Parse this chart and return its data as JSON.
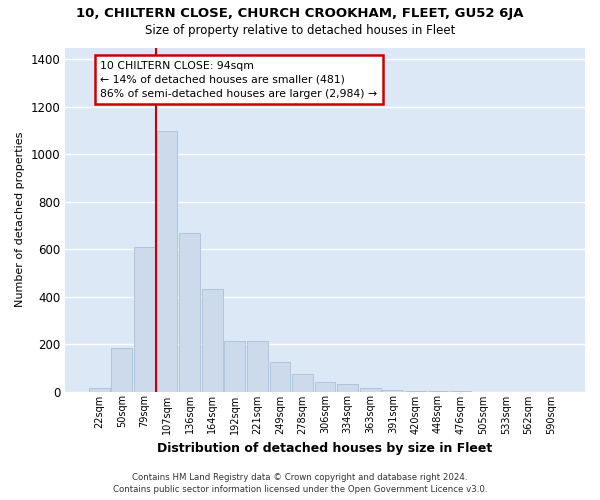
{
  "title": "10, CHILTERN CLOSE, CHURCH CROOKHAM, FLEET, GU52 6JA",
  "subtitle": "Size of property relative to detached houses in Fleet",
  "xlabel": "Distribution of detached houses by size in Fleet",
  "ylabel": "Number of detached properties",
  "bar_color": "#ccdaeb",
  "bar_edgecolor": "#aabfd8",
  "categories": [
    "22sqm",
    "50sqm",
    "79sqm",
    "107sqm",
    "136sqm",
    "164sqm",
    "192sqm",
    "221sqm",
    "249sqm",
    "278sqm",
    "306sqm",
    "334sqm",
    "363sqm",
    "391sqm",
    "420sqm",
    "448sqm",
    "476sqm",
    "505sqm",
    "533sqm",
    "562sqm",
    "590sqm"
  ],
  "values": [
    15,
    185,
    610,
    1100,
    670,
    430,
    215,
    215,
    125,
    75,
    40,
    30,
    15,
    8,
    3,
    2,
    1,
    0,
    0,
    0,
    0
  ],
  "ylim": [
    0,
    1450
  ],
  "yticks": [
    0,
    200,
    400,
    600,
    800,
    1000,
    1200,
    1400
  ],
  "vline_x": 2.5,
  "vline_color": "#cc0000",
  "annotation_text": "10 CHILTERN CLOSE: 94sqm\n← 14% of detached houses are smaller (481)\n86% of semi-detached houses are larger (2,984) →",
  "footer_line1": "Contains HM Land Registry data © Crown copyright and database right 2024.",
  "footer_line2": "Contains public sector information licensed under the Open Government Licence v3.0.",
  "bg_color": "#ffffff",
  "plot_bg_color": "#dce8f5"
}
